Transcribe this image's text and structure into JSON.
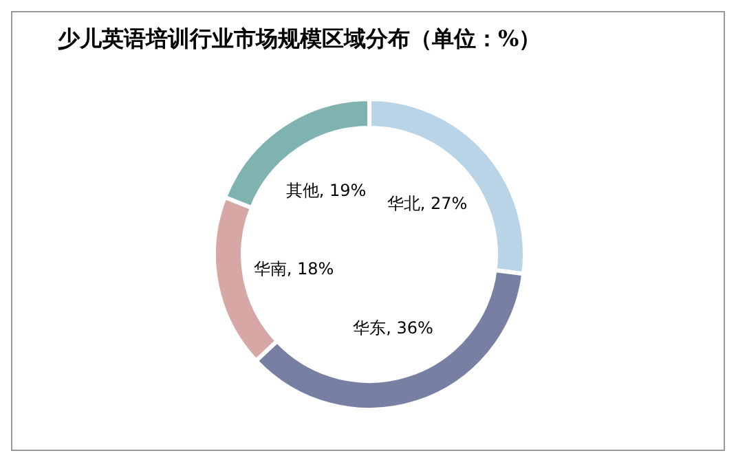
{
  "chart_data": {
    "type": "donut",
    "title": "少儿英语培训行业市场规模区域分布（单位：%）",
    "categories": [
      "华北",
      "华东",
      "华南",
      "其他"
    ],
    "values": [
      27,
      36,
      18,
      19
    ],
    "colors": [
      "#b8d4e6",
      "#7780a3",
      "#d6a7a5",
      "#7fb3b0"
    ],
    "value_labels": [
      ", 27%",
      ", 36%",
      ", 18%",
      ", 19%"
    ],
    "legend": false
  }
}
